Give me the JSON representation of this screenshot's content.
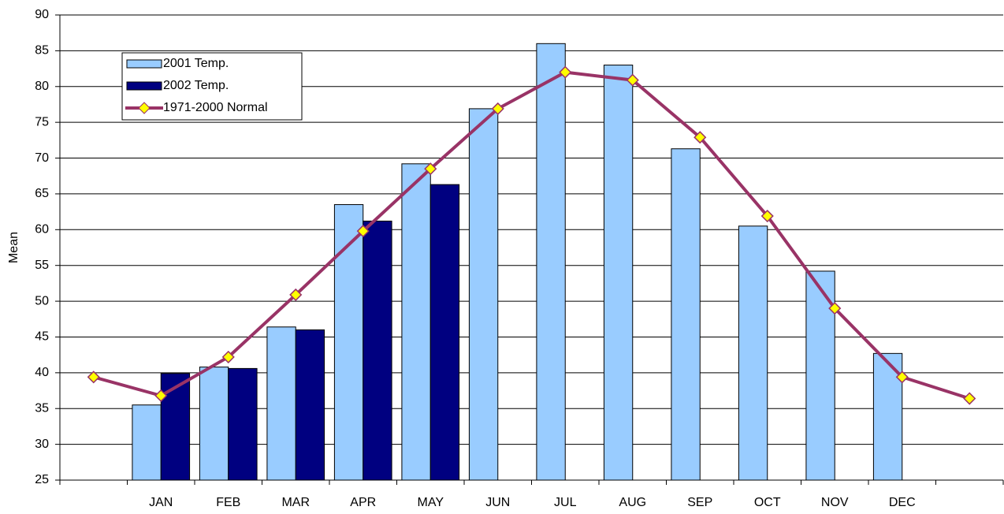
{
  "chart_data": {
    "type": "bar-line",
    "y_label": "Mean",
    "categories": [
      null,
      "JAN",
      "FEB",
      "MAR",
      "APR",
      "MAY",
      "JUN",
      "JUL",
      "AUG",
      "SEP",
      "OCT",
      "NOV",
      "DEC",
      null
    ],
    "series": [
      {
        "name": "2001 Temp.",
        "type": "bar",
        "color": "#99ccff",
        "values": [
          null,
          35.5,
          40.8,
          46.4,
          63.5,
          69.2,
          76.9,
          86,
          83,
          71.3,
          60.5,
          54.2,
          42.7,
          null
        ]
      },
      {
        "name": "2002 Temp.",
        "type": "bar",
        "color": "#000080",
        "values": [
          null,
          39.9,
          40.6,
          46,
          61.2,
          66.3,
          null,
          null,
          null,
          null,
          null,
          null,
          null,
          null
        ]
      },
      {
        "name": "1971-2000 Normal",
        "type": "line",
        "color": "#993366",
        "marker_color": "#ffff00",
        "values": [
          39.4,
          36.8,
          42.2,
          50.9,
          59.8,
          68.5,
          76.9,
          82,
          80.9,
          72.9,
          61.9,
          49,
          39.4,
          36.4
        ]
      }
    ],
    "ylim": [
      25,
      90
    ],
    "yticks": [
      25,
      30,
      35,
      40,
      45,
      50,
      55,
      60,
      65,
      70,
      75,
      80,
      85,
      90
    ],
    "grid": true,
    "legend": "top-left"
  }
}
